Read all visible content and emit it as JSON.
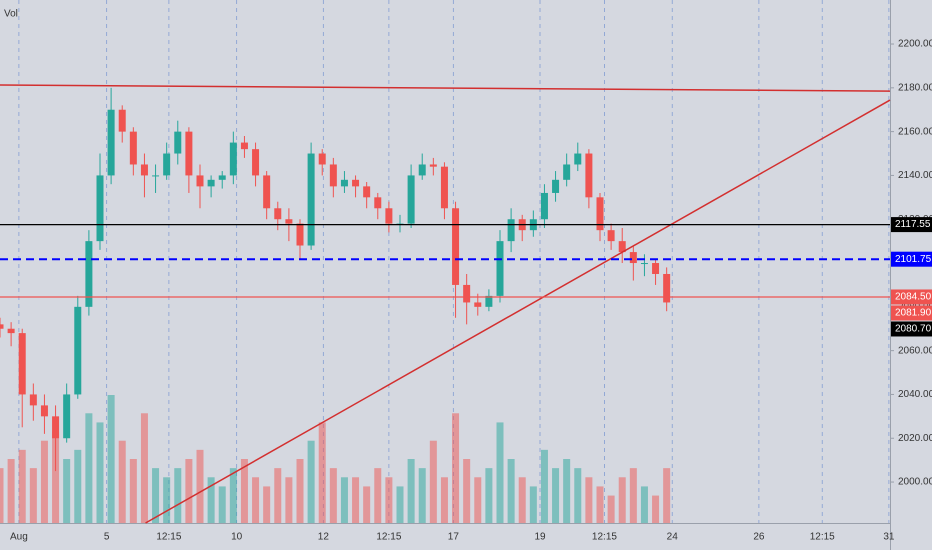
{
  "chart_data": {
    "type": "candlestick",
    "volume_label": "Vol",
    "xlim": [
      0,
      80.1
    ],
    "xticks": [
      {
        "value": 1.7,
        "label": "Aug"
      },
      {
        "value": 9.6,
        "label": "5"
      },
      {
        "value": 15.2,
        "label": "12:15"
      },
      {
        "value": 21.3,
        "label": "10"
      },
      {
        "value": 29.1,
        "label": "12"
      },
      {
        "value": 35,
        "label": "12:15"
      },
      {
        "value": 40.8,
        "label": "17"
      },
      {
        "value": 48.6,
        "label": "19"
      },
      {
        "value": 54.4,
        "label": "12:15"
      },
      {
        "value": 60.5,
        "label": "24"
      },
      {
        "value": 68.3,
        "label": "26"
      },
      {
        "value": 74,
        "label": "12:15"
      },
      {
        "value": 80,
        "label": "31"
      }
    ],
    "ylim": [
      1981.3,
      2220.1
    ],
    "yticks": [
      {
        "value": 2000,
        "label": "2000.00"
      },
      {
        "value": 2020,
        "label": "2020.00"
      },
      {
        "value": 2040,
        "label": "2040.00"
      },
      {
        "value": 2060,
        "label": "2060.00"
      },
      {
        "value": 2080,
        "label": "2080.00"
      },
      {
        "value": 2100,
        "label": "2100.00"
      },
      {
        "value": 2120,
        "label": "2120.00"
      },
      {
        "value": 2140,
        "label": "2140.00"
      },
      {
        "value": 2160,
        "label": "2160.00"
      },
      {
        "value": 2180,
        "label": "2180.00"
      },
      {
        "value": 2200,
        "label": "2200.00"
      }
    ],
    "grid": "x",
    "up_color": "#26a69a",
    "down_color": "#ef5350",
    "x": [
      0,
      1,
      2,
      3,
      4,
      5,
      6,
      7,
      8,
      9,
      10,
      11,
      12,
      13,
      14,
      15,
      16,
      17,
      18,
      19,
      20,
      21,
      22,
      23,
      24,
      25,
      26,
      27,
      28,
      29,
      30,
      31,
      32,
      33,
      34,
      35,
      36,
      37,
      38,
      39,
      40,
      41,
      42,
      43,
      44,
      45,
      46,
      47,
      48,
      49,
      50,
      51,
      52,
      53,
      54,
      55,
      56,
      57,
      58,
      59,
      60
    ],
    "open": [
      2072,
      2070,
      2068,
      2040,
      2035,
      2030,
      2020,
      2040,
      2080,
      2110,
      2140,
      2170,
      2160,
      2145,
      2140,
      2140,
      2150,
      2160,
      2140,
      2135,
      2138,
      2140,
      2155,
      2152,
      2140,
      2125,
      2120,
      2118,
      2108,
      2150,
      2145,
      2135,
      2138,
      2135,
      2130,
      2125,
      2118,
      2118,
      2140,
      2145,
      2144,
      2125,
      2090,
      2082,
      2080,
      2085,
      2110,
      2120,
      2115,
      2120,
      2132,
      2138,
      2145,
      2150,
      2130,
      2115,
      2110,
      2105,
      2100,
      2100,
      2095
    ],
    "high": [
      2075,
      2073,
      2070,
      2045,
      2040,
      2035,
      2045,
      2085,
      2115,
      2150,
      2180,
      2172,
      2162,
      2150,
      2145,
      2155,
      2165,
      2162,
      2145,
      2140,
      2142,
      2160,
      2158,
      2155,
      2142,
      2128,
      2125,
      2120,
      2155,
      2152,
      2148,
      2142,
      2140,
      2137,
      2132,
      2128,
      2122,
      2145,
      2150,
      2148,
      2146,
      2128,
      2095,
      2086,
      2088,
      2115,
      2125,
      2122,
      2124,
      2136,
      2142,
      2150,
      2155,
      2152,
      2132,
      2118,
      2116,
      2108,
      2104,
      2102,
      2098
    ],
    "low": [
      2066,
      2062,
      2025,
      2028,
      2022,
      2005,
      2018,
      2038,
      2076,
      2106,
      2136,
      2155,
      2140,
      2130,
      2132,
      2138,
      2145,
      2132,
      2125,
      2130,
      2134,
      2136,
      2148,
      2135,
      2120,
      2115,
      2110,
      2102,
      2106,
      2140,
      2130,
      2132,
      2130,
      2125,
      2120,
      2114,
      2114,
      2116,
      2138,
      2140,
      2120,
      2075,
      2072,
      2076,
      2078,
      2082,
      2105,
      2110,
      2112,
      2116,
      2128,
      2135,
      2142,
      2125,
      2110,
      2106,
      2100,
      2092,
      2094,
      2090,
      2078
    ],
    "close": [
      2070,
      2068,
      2040,
      2035,
      2030,
      2020,
      2040,
      2080,
      2110,
      2140,
      2170,
      2160,
      2145,
      2140,
      2140,
      2150,
      2160,
      2140,
      2135,
      2138,
      2140,
      2155,
      2152,
      2140,
      2125,
      2120,
      2118,
      2108,
      2150,
      2145,
      2135,
      2138,
      2135,
      2130,
      2125,
      2118,
      2118,
      2140,
      2145,
      2144,
      2125,
      2090,
      2082,
      2080,
      2085,
      2110,
      2120,
      2115,
      2120,
      2132,
      2138,
      2145,
      2150,
      2130,
      2115,
      2110,
      2105,
      2100,
      2100,
      2095,
      2082
    ],
    "volume": [
      30,
      35,
      40,
      30,
      45,
      50,
      35,
      40,
      60,
      55,
      70,
      45,
      35,
      60,
      30,
      25,
      30,
      35,
      40,
      25,
      20,
      30,
      35,
      25,
      20,
      30,
      25,
      35,
      45,
      55,
      30,
      25,
      25,
      20,
      30,
      25,
      20,
      35,
      30,
      45,
      25,
      60,
      35,
      25,
      30,
      55,
      35,
      25,
      20,
      40,
      30,
      35,
      30,
      25,
      20,
      15,
      25,
      30,
      20,
      15,
      30
    ],
    "levels": [
      {
        "value": 2117.55,
        "label": "2117.55",
        "color": "#000000",
        "line_style": "solid"
      },
      {
        "value": 2101.75,
        "label": "2101.75",
        "color": "#0000ff",
        "line_style": "dashed"
      },
      {
        "value": 2084.5,
        "label": "2084.50",
        "color": "#ef5350",
        "line_style": "solid"
      },
      {
        "value": 2081.9,
        "label": "2081.90",
        "color": "#ef5350",
        "line_style": "none"
      },
      {
        "value": 2080.7,
        "label": "2080.70",
        "color": "#000000",
        "line_style": "none"
      }
    ],
    "trendlines": [
      {
        "x": [
          0,
          80.1
        ],
        "y": [
          2181.3,
          2178.5
        ],
        "color": "#d32f2f"
      },
      {
        "x": [
          13.1,
          80.1
        ],
        "y": [
          1981.3,
          2174.4
        ],
        "color": "#d32f2f"
      }
    ]
  }
}
